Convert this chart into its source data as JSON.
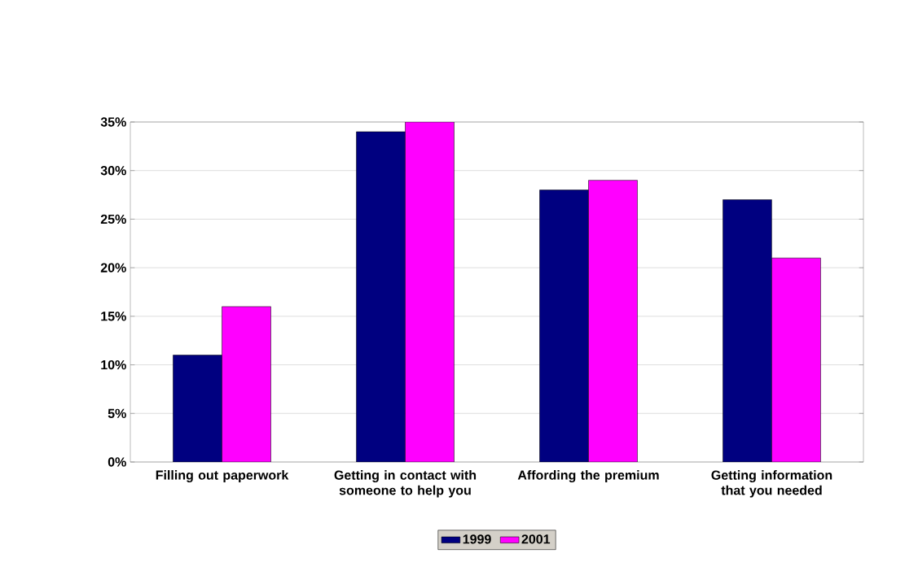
{
  "chart_data": {
    "type": "bar",
    "categories": [
      "Filling out paperwork",
      "Getting in contact with someone to help you",
      "Affording the premium",
      "Getting information that you needed"
    ],
    "series": [
      {
        "name": "1999",
        "color": "#000080",
        "values": [
          11,
          34,
          28,
          27
        ]
      },
      {
        "name": "2001",
        "color": "#ff00ff",
        "values": [
          16,
          35,
          29,
          21
        ]
      }
    ],
    "ylim": [
      0,
      35
    ],
    "yticks": [
      {
        "value": 0,
        "label": "0%"
      },
      {
        "value": 5,
        "label": "5%"
      },
      {
        "value": 10,
        "label": "10%"
      },
      {
        "value": 15,
        "label": "15%"
      },
      {
        "value": 20,
        "label": "20%"
      },
      {
        "value": 25,
        "label": "25%"
      },
      {
        "value": 30,
        "label": "30%"
      },
      {
        "value": 35,
        "label": "35%"
      }
    ],
    "grid": "y",
    "legend": "bottom"
  }
}
